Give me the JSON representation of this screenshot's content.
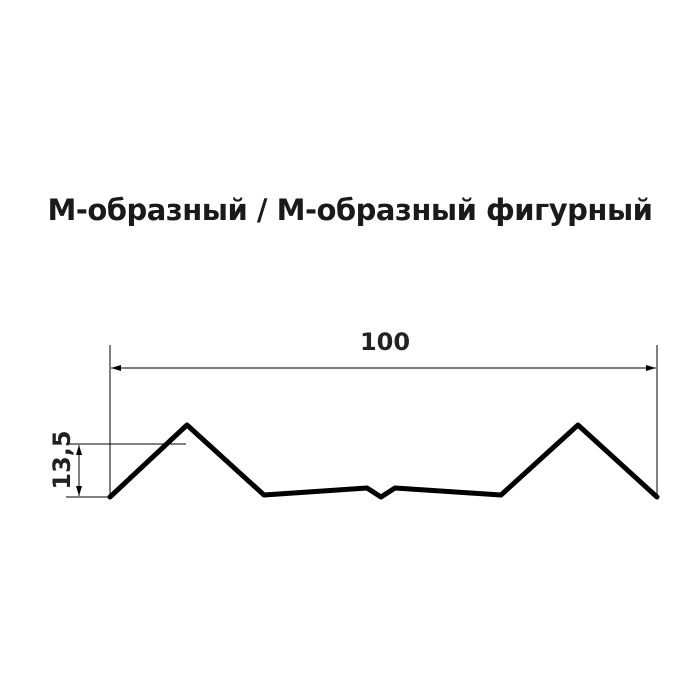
{
  "title": "М-образный / М-образный фигурный",
  "dimensions": {
    "width_label": "100",
    "height_label": "13,5"
  },
  "colors": {
    "profile": "#000000",
    "text": "#222222"
  }
}
